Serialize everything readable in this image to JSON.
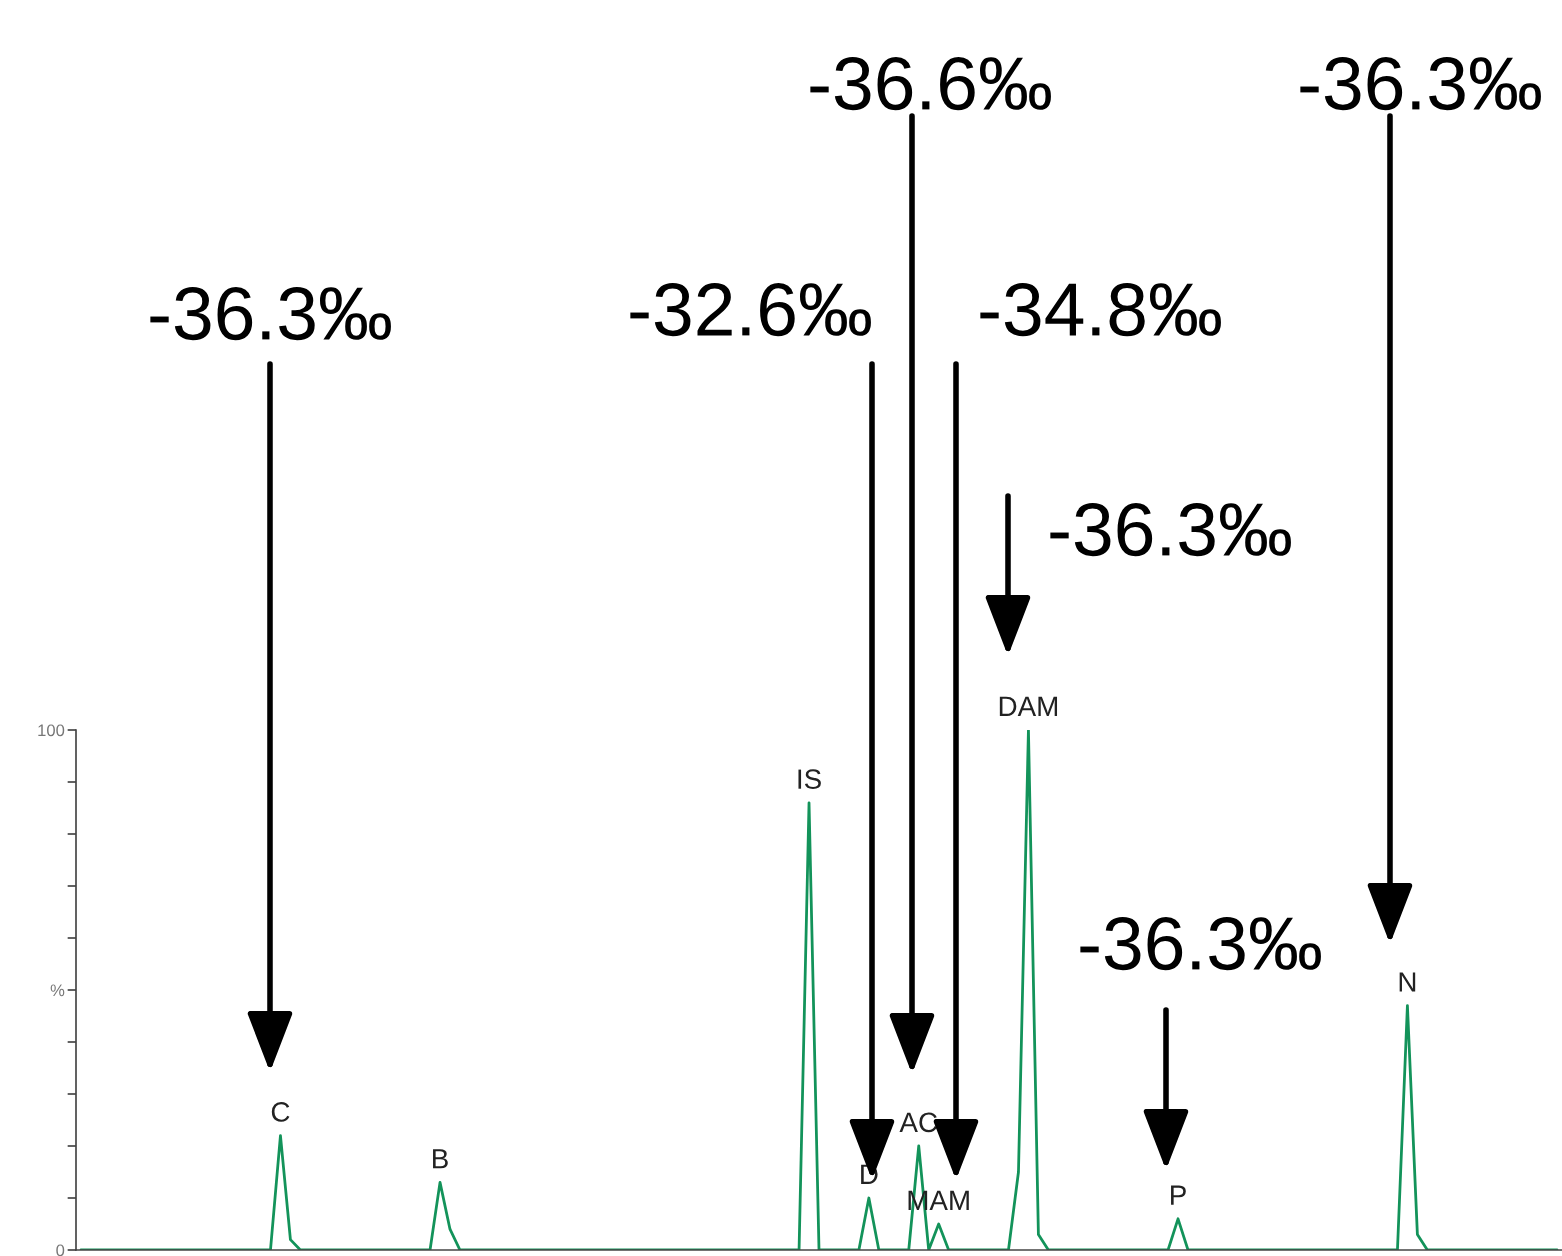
{
  "chart_data": {
    "type": "line",
    "categories": [
      null,
      null,
      null,
      null,
      null,
      null,
      null,
      null,
      null,
      null,
      null,
      null,
      null,
      null,
      null,
      null,
      null,
      null,
      null,
      null,
      null,
      null,
      null,
      null,
      null,
      null,
      null,
      null,
      null,
      null,
      null,
      null,
      null,
      null,
      null,
      null,
      null,
      null,
      null,
      null,
      null,
      null,
      null,
      null,
      null,
      null,
      null,
      null,
      null,
      null,
      null,
      null,
      null,
      null,
      null,
      null,
      null,
      null,
      null,
      null,
      null,
      null,
      null,
      null,
      null,
      null,
      null,
      null,
      null,
      null,
      null,
      null,
      null,
      null,
      null,
      null,
      null,
      null,
      null,
      null,
      null,
      null,
      null,
      null,
      null,
      null,
      null,
      null,
      null,
      null,
      null,
      null,
      null,
      null,
      null,
      null,
      null,
      null,
      null,
      null,
      null,
      null,
      null,
      null,
      null,
      null,
      null,
      null,
      null,
      null,
      null,
      null,
      null,
      null,
      null,
      null,
      null,
      null,
      null,
      null,
      null,
      null,
      null,
      null,
      null,
      null,
      null,
      null,
      null,
      null,
      null,
      null,
      null,
      null,
      null,
      null,
      null,
      null,
      null,
      null,
      null,
      null,
      null,
      null,
      null,
      null,
      null,
      null,
      null
    ],
    "series": [
      {
        "color": "#13935a",
        "values": [
          0,
          0,
          0,
          0,
          0,
          0,
          0,
          0,
          0,
          0,
          0,
          0,
          0,
          0,
          0,
          0,
          0,
          0,
          0,
          0,
          22,
          2,
          0,
          0,
          0,
          0,
          0,
          0,
          0,
          0,
          0,
          0,
          0,
          0,
          0,
          0,
          13,
          4,
          0,
          0,
          0,
          0,
          0,
          0,
          0,
          0,
          0,
          0,
          0,
          0,
          0,
          0,
          0,
          0,
          0,
          0,
          0,
          0,
          0,
          0,
          0,
          0,
          0,
          0,
          0,
          0,
          0,
          0,
          0,
          0,
          0,
          0,
          0,
          86,
          0,
          0,
          0,
          0,
          0,
          10,
          0,
          0,
          0,
          0,
          20,
          0,
          5,
          0,
          0,
          0,
          0,
          0,
          0,
          0,
          15,
          100,
          3,
          0,
          0,
          0,
          0,
          0,
          0,
          0,
          0,
          0,
          0,
          0,
          0,
          0,
          6,
          0,
          0,
          0,
          0,
          0,
          0,
          0,
          0,
          0,
          0,
          0,
          0,
          0,
          0,
          0,
          0,
          0,
          0,
          0,
          0,
          0,
          0,
          47,
          3,
          0,
          0,
          0,
          0,
          0,
          0,
          0,
          0,
          0,
          0,
          0,
          0,
          0,
          0
        ]
      }
    ],
    "ylim": [
      0,
      100
    ],
    "yticks": [
      0,
      {
        "value": 10,
        "label": null
      },
      {
        "value": 20,
        "label": null
      },
      {
        "value": 30,
        "label": null
      },
      {
        "value": 40,
        "label": null
      },
      {
        "value": 50,
        "label": "%"
      },
      {
        "value": 60,
        "label": null
      },
      {
        "value": 70,
        "label": null
      },
      {
        "value": 80,
        "label": null
      },
      {
        "value": 90,
        "label": null
      },
      100
    ],
    "tick_labels": "y",
    "marker": "none",
    "line_style": "solid",
    "annotations": [
      {
        "text": "C",
        "y": 22
      },
      {
        "text": "B",
        "y": 13
      },
      {
        "text": "IS",
        "y": 86
      },
      {
        "text": "D",
        "y": 10
      },
      {
        "text": "AC",
        "y": 20
      },
      {
        "text": "MAM",
        "y": 5
      },
      {
        "text": "DAM",
        "y": 100
      },
      {
        "text": "P",
        "y": 6
      },
      {
        "text": "N",
        "y": 47
      },
      "-36.3‰",
      "-32.6‰",
      "-36.6‰",
      "-34.8‰",
      "-36.3‰",
      "-36.3‰",
      "-36.3‰"
    ]
  }
}
